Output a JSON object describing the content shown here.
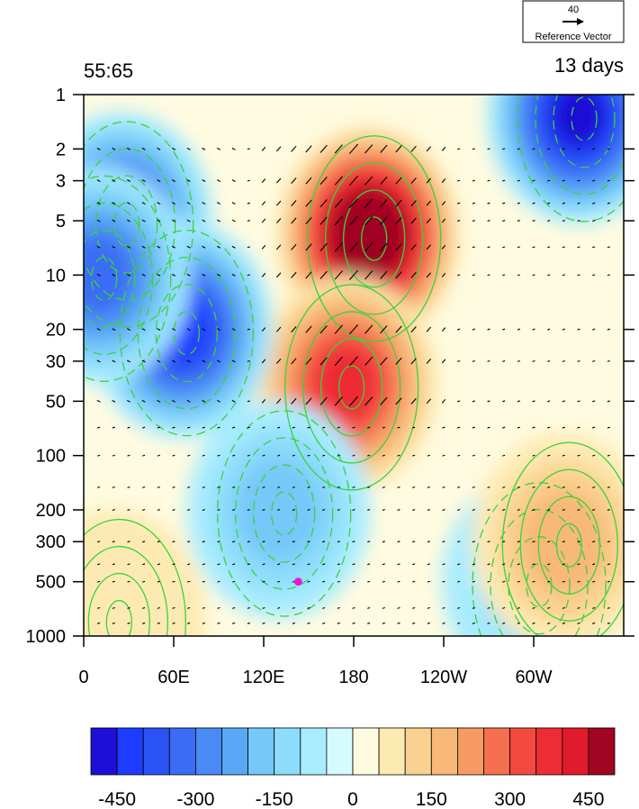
{
  "header": {
    "left_title": "55:65",
    "right_title": "13 days"
  },
  "reference_vector": {
    "value": "40",
    "label": "Reference Vector"
  },
  "chart_data": {
    "type": "heatmap",
    "description_free": true,
    "x_axis": {
      "ticks": [
        {
          "lon": 0,
          "label": "0"
        },
        {
          "lon": 60,
          "label": "60E"
        },
        {
          "lon": 120,
          "label": "120E"
        },
        {
          "lon": 180,
          "label": "180"
        },
        {
          "lon": 240,
          "label": "120W"
        },
        {
          "lon": 300,
          "label": "60W"
        }
      ],
      "range": [
        0,
        360
      ]
    },
    "y_axis": {
      "scale": "log",
      "reversed": true,
      "range": [
        1,
        1000
      ],
      "ticks": [
        {
          "p": 1,
          "label": "1"
        },
        {
          "p": 2,
          "label": "2"
        },
        {
          "p": 3,
          "label": "3"
        },
        {
          "p": 5,
          "label": "5"
        },
        {
          "p": 10,
          "label": "10"
        },
        {
          "p": 20,
          "label": "20"
        },
        {
          "p": 30,
          "label": "30"
        },
        {
          "p": 50,
          "label": "50"
        },
        {
          "p": 100,
          "label": "100"
        },
        {
          "p": 200,
          "label": "200"
        },
        {
          "p": 300,
          "label": "300"
        },
        {
          "p": 500,
          "label": "500"
        },
        {
          "p": 1000,
          "label": "1000"
        }
      ]
    },
    "colorbar": {
      "colors": [
        "#1e0fd6",
        "#1e3cff",
        "#2a52f5",
        "#3a6cf5",
        "#4a8af5",
        "#5aa8f5",
        "#76c8f8",
        "#8ddcfb",
        "#a8ecff",
        "#d6fbff",
        "#fffbe0",
        "#fdeab2",
        "#fad190",
        "#f7b878",
        "#f59b63",
        "#f57050",
        "#f3493f",
        "#ee2c34",
        "#e01c2c",
        "#a00522"
      ],
      "labels": [
        {
          "index": 1,
          "text": "-450"
        },
        {
          "index": 4,
          "text": "-300"
        },
        {
          "index": 7,
          "text": "-150"
        },
        {
          "index": 10,
          "text": "0"
        },
        {
          "index": 13,
          "text": "150"
        },
        {
          "index": 16,
          "text": "300"
        },
        {
          "index": 19,
          "text": "450"
        }
      ]
    },
    "shading_anomalies": [
      {
        "lon": 190,
        "p": 6,
        "value": 560
      },
      {
        "lon": 175,
        "p": 40,
        "value": 380
      },
      {
        "lon": 330,
        "p": 1.3,
        "value": -480
      },
      {
        "lon": 25,
        "p": 5,
        "value": -380
      },
      {
        "lon": 65,
        "p": 20,
        "value": -430
      },
      {
        "lon": 10,
        "p": 10,
        "value": -300
      },
      {
        "lon": 130,
        "p": 200,
        "value": -170
      },
      {
        "lon": 300,
        "p": 500,
        "value": -130
      },
      {
        "lon": 320,
        "p": 300,
        "value": 170
      },
      {
        "lon": 20,
        "p": 800,
        "value": 90
      }
    ],
    "contour_color": "#3cd23c",
    "marker": {
      "lon": 143,
      "p": 500,
      "color": "#e81ad8"
    }
  }
}
